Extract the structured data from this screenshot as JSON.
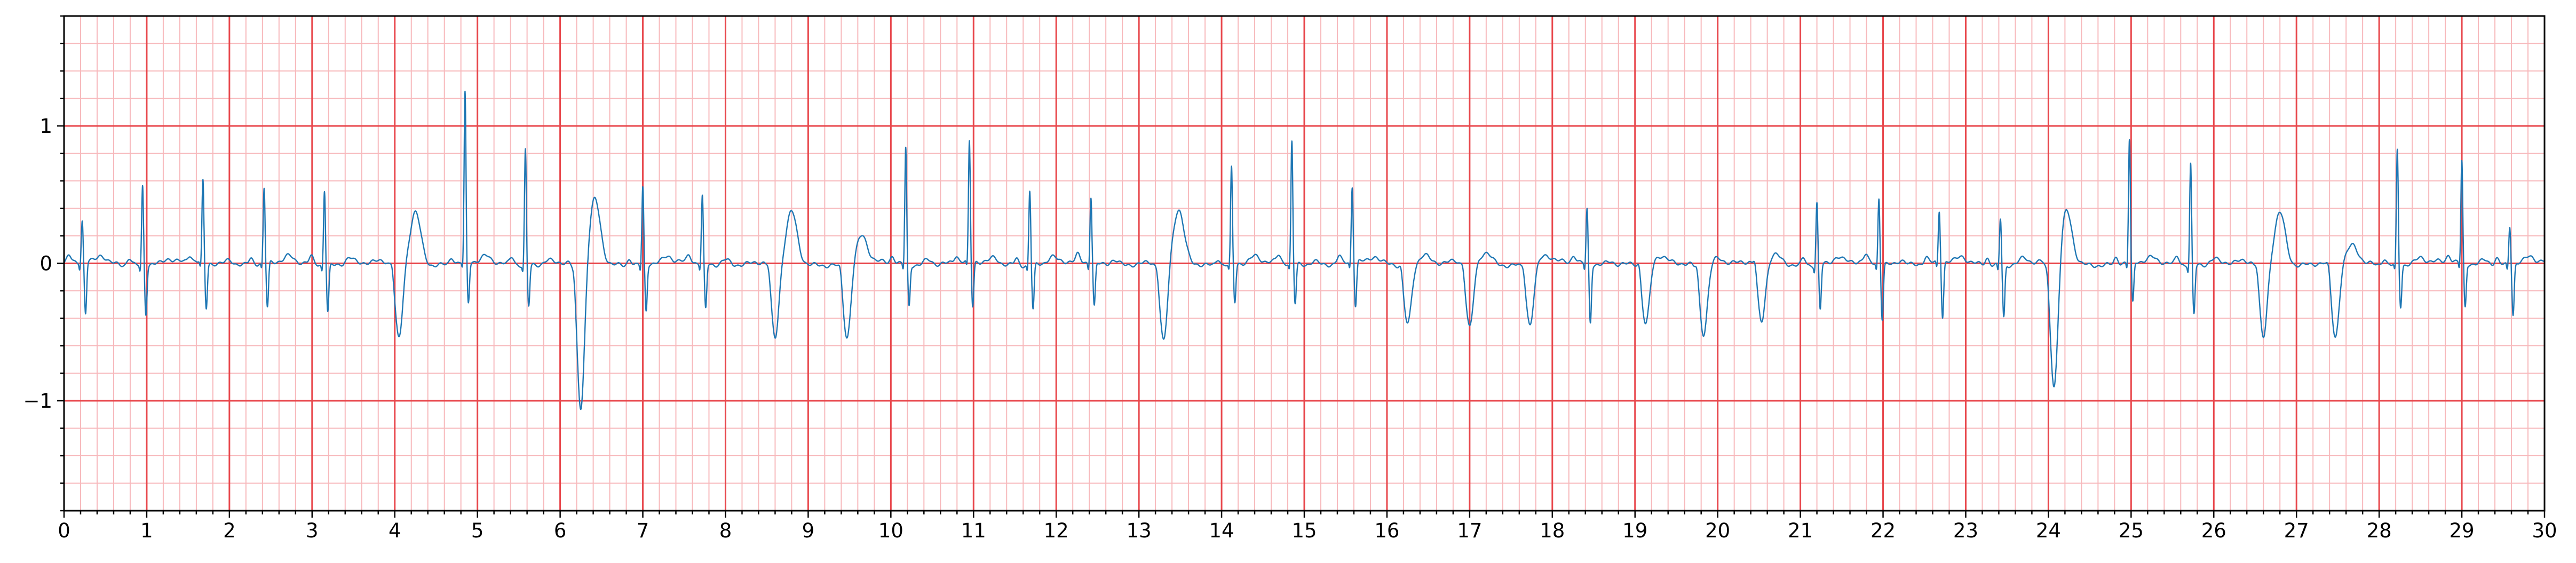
{
  "chart_data": {
    "type": "line",
    "title": "",
    "xlabel": "",
    "ylabel": "",
    "xlim": [
      0,
      30
    ],
    "ylim": [
      -1.8,
      1.8
    ],
    "x_ticks": [
      0,
      1,
      2,
      3,
      4,
      5,
      6,
      7,
      8,
      9,
      10,
      11,
      12,
      13,
      14,
      15,
      16,
      17,
      18,
      19,
      20,
      21,
      22,
      23,
      24,
      25,
      26,
      27,
      28,
      29,
      30
    ],
    "x_tick_labels": [
      "0",
      "1",
      "2",
      "3",
      "4",
      "5",
      "6",
      "7",
      "8",
      "9",
      "10",
      "11",
      "12",
      "13",
      "14",
      "15",
      "16",
      "17",
      "18",
      "19",
      "20",
      "21",
      "22",
      "23",
      "24",
      "25",
      "26",
      "27",
      "28",
      "29",
      "30"
    ],
    "y_ticks": [
      -1,
      0,
      1
    ],
    "y_tick_labels": [
      "−1",
      "0",
      "1"
    ],
    "x_minor_step": 0.2,
    "y_minor_step": 0.2,
    "grid": true,
    "grid_major_color": "#e8474c",
    "grid_minor_color": "#f7b9bc",
    "legend": null,
    "series": [
      {
        "color": "#1f77b4",
        "beats": [
          {
            "t": 0.22,
            "r": 0.3,
            "s": -0.38,
            "tw": 0.05,
            "tt": 0.45
          },
          {
            "t": 0.95,
            "r": 0.58,
            "s": -0.35,
            "tw": 0.03,
            "tt": 1.25
          },
          {
            "t": 1.68,
            "r": 0.59,
            "s": -0.33,
            "tw": 0.04,
            "tt": 2.0
          },
          {
            "t": 2.42,
            "r": 0.54,
            "s": -0.33,
            "tw": 0.04,
            "tt": 2.72
          },
          {
            "t": 3.15,
            "r": 0.55,
            "s": -0.34,
            "tw": 0.05,
            "tt": 3.45
          },
          {
            "t": 4.0,
            "r": 0.06,
            "s": -0.56,
            "tw": 0.38,
            "tt": 4.25,
            "pvc": true
          },
          {
            "t": 4.85,
            "r": 1.23,
            "s": -0.3,
            "tw": 0.04,
            "tt": 5.1
          },
          {
            "t": 5.58,
            "r": 0.84,
            "s": -0.3,
            "tw": 0.03,
            "tt": 5.85
          },
          {
            "t": 6.2,
            "r": 0.06,
            "s": -1.08,
            "tw": 0.46,
            "tt": 6.42,
            "pvc": true
          },
          {
            "t": 7.0,
            "r": 0.56,
            "s": -0.34,
            "tw": 0.04,
            "tt": 7.3
          },
          {
            "t": 7.72,
            "r": 0.49,
            "s": -0.33,
            "tw": 0.04,
            "tt": 8.0
          },
          {
            "t": 8.55,
            "r": 0.05,
            "s": -0.56,
            "tw": 0.37,
            "tt": 8.8,
            "pvc": true
          },
          {
            "t": 9.42,
            "r": 0.05,
            "s": -0.54,
            "tw": 0.19,
            "tt": 9.65,
            "pvc": true
          },
          {
            "t": 10.18,
            "r": 0.85,
            "s": -0.3,
            "tw": 0.04,
            "tt": 10.45
          },
          {
            "t": 10.95,
            "r": 0.87,
            "s": -0.33,
            "tw": 0.04,
            "tt": 11.25
          },
          {
            "t": 11.68,
            "r": 0.54,
            "s": -0.33,
            "tw": 0.04,
            "tt": 11.95
          },
          {
            "t": 12.42,
            "r": 0.49,
            "s": -0.31,
            "tw": 0.04,
            "tt": 12.7
          },
          {
            "t": 13.25,
            "r": 0.04,
            "s": -0.59,
            "tw": 0.38,
            "tt": 13.48,
            "pvc": true
          },
          {
            "t": 14.12,
            "r": 0.7,
            "s": -0.28,
            "tw": 0.04,
            "tt": 14.4
          },
          {
            "t": 14.85,
            "r": 0.89,
            "s": -0.29,
            "tw": 0.03,
            "tt": 15.12
          },
          {
            "t": 15.58,
            "r": 0.55,
            "s": -0.32,
            "tw": 0.04,
            "tt": 15.85
          },
          {
            "t": 16.2,
            "r": 0.05,
            "s": -0.43,
            "tw": 0.07,
            "tt": 16.45,
            "pvc": true
          },
          {
            "t": 16.95,
            "r": 0.05,
            "s": -0.48,
            "tw": 0.08,
            "tt": 17.2,
            "pvc": true
          },
          {
            "t": 17.68,
            "r": 0.05,
            "s": -0.44,
            "tw": 0.05,
            "tt": 17.92,
            "pvc": true
          },
          {
            "t": 18.42,
            "r": 0.4,
            "s": -0.42,
            "tw": 0.03,
            "tt": 18.7
          },
          {
            "t": 19.08,
            "r": 0.06,
            "s": -0.46,
            "tw": 0.04,
            "tt": 19.3,
            "pvc": true
          },
          {
            "t": 19.78,
            "r": 0.06,
            "s": -0.5,
            "tw": 0.05,
            "tt": 20.0,
            "pvc": true
          },
          {
            "t": 20.48,
            "r": 0.07,
            "s": -0.44,
            "tw": 0.06,
            "tt": 20.7,
            "pvc": true
          },
          {
            "t": 21.2,
            "r": 0.45,
            "s": -0.33,
            "tw": 0.04,
            "tt": 21.45
          },
          {
            "t": 21.95,
            "r": 0.48,
            "s": -0.4,
            "tw": 0.04,
            "tt": 22.22
          },
          {
            "t": 22.68,
            "r": 0.37,
            "s": -0.4,
            "tw": 0.04,
            "tt": 22.95
          },
          {
            "t": 23.42,
            "r": 0.34,
            "s": -0.38,
            "tw": 0.04,
            "tt": 23.7
          },
          {
            "t": 24.02,
            "r": 0.04,
            "s": -0.93,
            "tw": 0.38,
            "tt": 24.22,
            "pvc": true
          },
          {
            "t": 24.98,
            "r": 0.89,
            "s": -0.3,
            "tw": 0.03,
            "tt": 25.25
          },
          {
            "t": 25.72,
            "r": 0.74,
            "s": -0.36,
            "tw": 0.04,
            "tt": 26.0
          },
          {
            "t": 26.55,
            "r": 0.05,
            "s": -0.55,
            "tw": 0.38,
            "tt": 26.8,
            "pvc": true
          },
          {
            "t": 27.42,
            "r": 0.05,
            "s": -0.55,
            "tw": 0.12,
            "tt": 27.68,
            "pvc": true
          },
          {
            "t": 28.22,
            "r": 0.84,
            "s": -0.3,
            "tw": 0.04,
            "tt": 28.5
          },
          {
            "t": 29.0,
            "r": 0.74,
            "s": -0.32,
            "tw": 0.04,
            "tt": 29.28
          },
          {
            "t": 29.58,
            "r": 0.28,
            "s": -0.37,
            "tw": 0.04,
            "tt": 29.82
          }
        ]
      }
    ]
  }
}
